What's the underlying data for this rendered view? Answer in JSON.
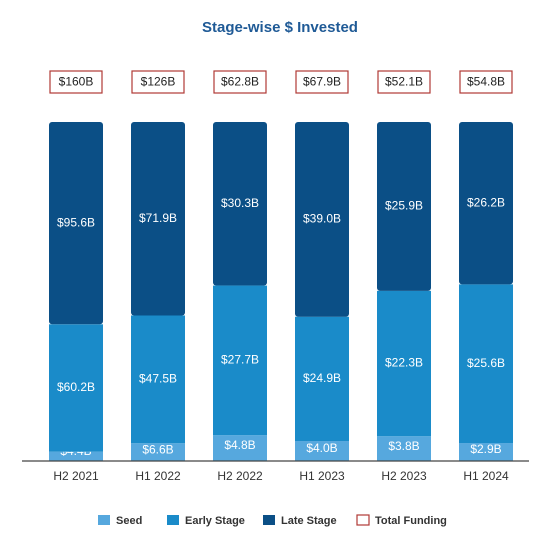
{
  "chart_data": {
    "type": "bar",
    "stacked": "percent",
    "title": "Stage-wise $ Invested",
    "categories": [
      "H2 2021",
      "H1 2022",
      "H2 2022",
      "H1 2023",
      "H2 2023",
      "H1 2024"
    ],
    "series": [
      {
        "name": "Seed",
        "color": "#56a8de",
        "values": [
          4.4,
          6.6,
          4.8,
          4.0,
          3.8,
          2.9
        ],
        "value_labels": [
          "$4.4B",
          "$6.6B",
          "$4.8B",
          "$4.0B",
          "$3.8B",
          "$2.9B"
        ]
      },
      {
        "name": "Early Stage",
        "color": "#1a8bc9",
        "values": [
          60.2,
          47.5,
          27.7,
          24.9,
          22.3,
          25.6
        ],
        "value_labels": [
          "$60.2B",
          "$47.5B",
          "$27.7B",
          "$24.9B",
          "$22.3B",
          "$25.6B"
        ]
      },
      {
        "name": "Late Stage",
        "color": "#0b4f86",
        "values": [
          95.6,
          71.9,
          30.3,
          39.0,
          25.9,
          26.2
        ],
        "value_labels": [
          "$95.6B",
          "$71.9B",
          "$30.3B",
          "$39.0B",
          "$25.9B",
          "$26.2B"
        ]
      },
      {
        "name": "Total Funding",
        "color": "#b03a35",
        "values": [
          160,
          126,
          62.8,
          67.9,
          52.1,
          54.8
        ],
        "value_labels": [
          "$160B",
          "$126B",
          "$62.8B",
          "$67.9B",
          "$52.1B",
          "$54.8B"
        ]
      }
    ]
  }
}
